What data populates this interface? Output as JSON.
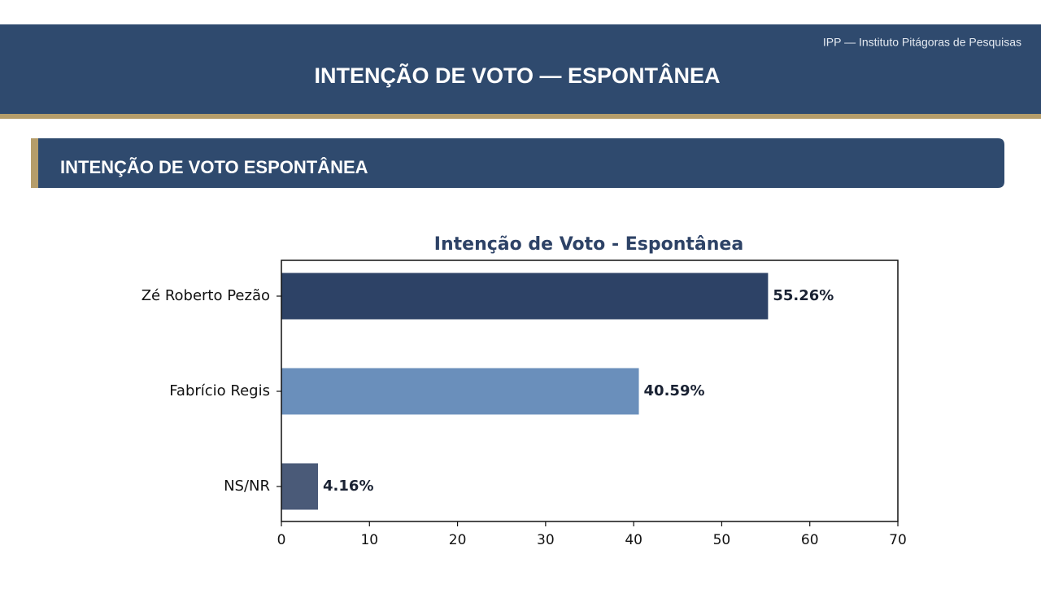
{
  "header": {
    "source": "IPP — Instituto Pitágoras de Pesquisas",
    "title": "INTENÇÃO DE VOTO — ESPONTÂNEA"
  },
  "section": {
    "title": "INTENÇÃO DE VOTO ESPONTÂNEA"
  },
  "chart_data": {
    "type": "barh",
    "title": "Intenção de Voto - Espontânea",
    "categories": [
      "Zé Roberto Pezão",
      "Fabrício Regis",
      "NS/NR"
    ],
    "values": [
      55.26,
      40.59,
      4.16
    ],
    "value_labels": [
      "55.26%",
      "40.59%",
      "4.16%"
    ],
    "colors": [
      "#2d4266",
      "#6a8fbb",
      "#4a5a78"
    ],
    "xlim": [
      0,
      70
    ],
    "xticks": [
      0,
      10,
      20,
      30,
      40,
      50,
      60,
      70
    ],
    "grid": false
  }
}
